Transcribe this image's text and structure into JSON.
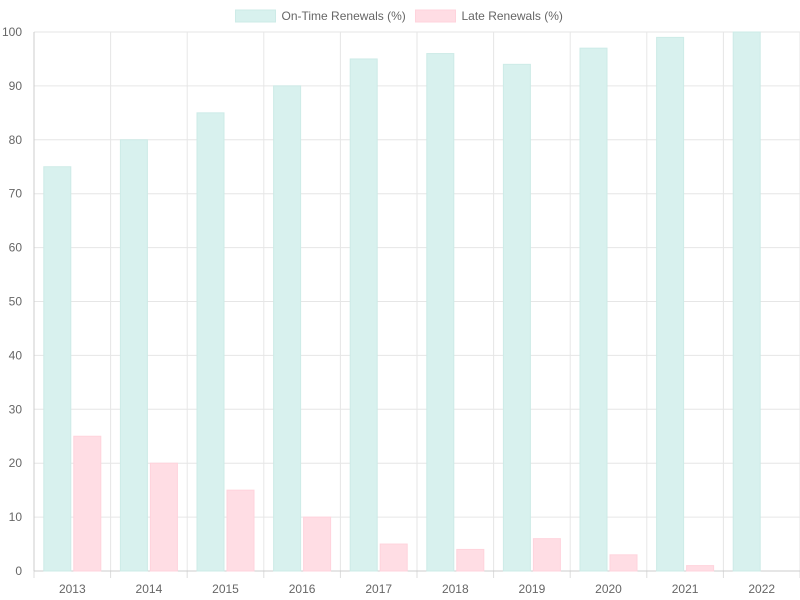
{
  "chart_data": {
    "type": "bar",
    "categories": [
      "2013",
      "2014",
      "2015",
      "2016",
      "2017",
      "2018",
      "2019",
      "2020",
      "2021",
      "2022"
    ],
    "series": [
      {
        "name": "On-Time Renewals (%)",
        "values": [
          75,
          80,
          85,
          90,
          95,
          96,
          94,
          97,
          99,
          100
        ],
        "color": "#d8f1ee",
        "border": "#cdebe7"
      },
      {
        "name": "Late Renewals (%)",
        "values": [
          25,
          20,
          15,
          10,
          5,
          4,
          6,
          3,
          1,
          0
        ],
        "color": "#ffdde4",
        "border": "#ffd3dc"
      }
    ],
    "ylim": [
      0,
      100
    ],
    "yticks": [
      0,
      10,
      20,
      30,
      40,
      50,
      60,
      70,
      80,
      90,
      100
    ],
    "grid": true,
    "legend": "top-center"
  }
}
